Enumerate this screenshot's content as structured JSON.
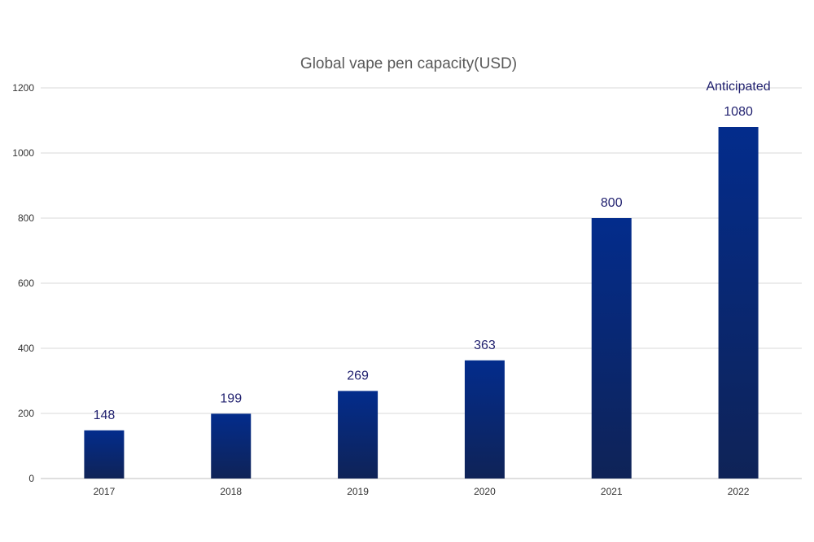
{
  "chart_data": {
    "type": "bar",
    "title": "Global vape pen capacity(USD)",
    "xlabel": "",
    "ylabel": "",
    "categories": [
      "2017",
      "2018",
      "2019",
      "2020",
      "2021",
      "2022"
    ],
    "values": [
      148,
      199,
      269,
      363,
      800,
      1080
    ],
    "data_labels": [
      "148",
      "199",
      "269",
      "363",
      "800",
      "1080"
    ],
    "ylim": [
      0,
      1200
    ],
    "yticks": [
      0,
      200,
      400,
      600,
      800,
      1000,
      1200
    ],
    "grid": true,
    "legend": "none",
    "annotations": [
      {
        "category": "2022",
        "text": "Anticipated"
      }
    ],
    "colors": {
      "bar_top": "#032c8c",
      "bar_bottom": "#0f2357",
      "label": "#1f1f6e",
      "grid": "#d9d9d9",
      "title": "#595959"
    }
  }
}
